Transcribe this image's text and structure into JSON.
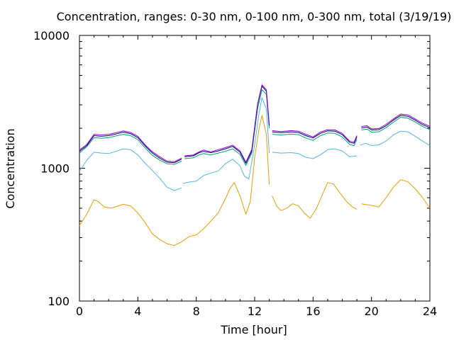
{
  "chart_data": {
    "type": "line",
    "title": "Concentration, ranges: 0-30 nm, 0-100 nm, 0-300 nm, total (3/19/19)",
    "xlabel": "Time [hour]",
    "ylabel": "Concentration",
    "xlim": [
      0,
      24
    ],
    "ylim": [
      100,
      10000
    ],
    "y_scale": "log",
    "x_ticks": [
      "0",
      "4",
      "8",
      "12",
      "16",
      "20",
      "24"
    ],
    "y_ticks": [
      "100",
      "1000",
      "10000"
    ],
    "grid": false,
    "legend": "none",
    "series": [
      {
        "color": "#e69f00",
        "segments": [
          [
            [
              0,
              370
            ],
            [
              0.5,
              450
            ],
            [
              1,
              580
            ],
            [
              1.3,
              560
            ],
            [
              1.7,
              510
            ],
            [
              2.2,
              500
            ],
            [
              3,
              535
            ],
            [
              3.5,
              520
            ],
            [
              4,
              460
            ],
            [
              4.5,
              390
            ],
            [
              5,
              320
            ],
            [
              5.5,
              290
            ],
            [
              6,
              270
            ],
            [
              6.5,
              262
            ],
            [
              7,
              280
            ],
            [
              7.5,
              305
            ],
            [
              8,
              315
            ],
            [
              8.5,
              350
            ],
            [
              9,
              400
            ],
            [
              9.5,
              460
            ],
            [
              10,
              590
            ],
            [
              10.3,
              700
            ],
            [
              10.6,
              780
            ],
            [
              11,
              620
            ],
            [
              11.4,
              450
            ],
            [
              11.7,
              560
            ],
            [
              12,
              1200
            ],
            [
              12.3,
              2000
            ],
            [
              12.5,
              2500
            ],
            [
              12.8,
              1800
            ],
            [
              13,
              750
            ]
          ],
          [
            [
              13.2,
              620
            ],
            [
              13.5,
              520
            ],
            [
              13.8,
              480
            ],
            [
              14.2,
              500
            ],
            [
              14.6,
              540
            ],
            [
              15,
              520
            ],
            [
              15.4,
              460
            ],
            [
              15.8,
              420
            ],
            [
              16.2,
              490
            ],
            [
              16.6,
              620
            ],
            [
              17,
              780
            ],
            [
              17.4,
              760
            ],
            [
              17.8,
              660
            ],
            [
              18.3,
              560
            ],
            [
              18.7,
              510
            ],
            [
              19,
              490
            ]
          ],
          [
            [
              19.3,
              540
            ],
            [
              20,
              525
            ],
            [
              20.5,
              510
            ],
            [
              21,
              600
            ],
            [
              21.5,
              720
            ],
            [
              22,
              820
            ],
            [
              22.5,
              790
            ],
            [
              23,
              700
            ],
            [
              23.5,
              600
            ],
            [
              24,
              500
            ]
          ]
        ]
      },
      {
        "color": "#56b4e9",
        "segments": [
          [
            [
              0,
              950
            ],
            [
              0.5,
              1150
            ],
            [
              1,
              1320
            ],
            [
              1.5,
              1300
            ],
            [
              2,
              1290
            ],
            [
              2.5,
              1340
            ],
            [
              3,
              1400
            ],
            [
              3.5,
              1380
            ],
            [
              4,
              1260
            ],
            [
              4.5,
              1090
            ],
            [
              5,
              960
            ],
            [
              5.5,
              840
            ],
            [
              6,
              720
            ],
            [
              6.5,
              680
            ],
            [
              7,
              710
            ]
          ],
          [
            [
              7.1,
              770
            ],
            [
              7.6,
              790
            ],
            [
              8,
              800
            ],
            [
              8.5,
              880
            ],
            [
              9,
              920
            ],
            [
              9.5,
              950
            ],
            [
              10,
              1080
            ],
            [
              10.5,
              1170
            ],
            [
              11,
              1040
            ],
            [
              11.3,
              870
            ],
            [
              11.6,
              830
            ],
            [
              12,
              1500
            ],
            [
              12.3,
              2600
            ],
            [
              12.5,
              3400
            ],
            [
              12.8,
              2800
            ],
            [
              13,
              1300
            ]
          ],
          [
            [
              13.2,
              1320
            ],
            [
              13.8,
              1300
            ],
            [
              14.5,
              1310
            ],
            [
              15,
              1290
            ],
            [
              15.5,
              1210
            ],
            [
              16,
              1180
            ],
            [
              16.5,
              1260
            ],
            [
              17,
              1380
            ],
            [
              17.5,
              1400
            ],
            [
              18,
              1350
            ],
            [
              18.5,
              1220
            ],
            [
              19,
              1240
            ]
          ],
          [
            [
              19.2,
              1490
            ],
            [
              19.6,
              1540
            ],
            [
              20,
              1480
            ],
            [
              20.5,
              1500
            ],
            [
              21,
              1600
            ],
            [
              21.5,
              1780
            ],
            [
              22,
              1900
            ],
            [
              22.5,
              1880
            ],
            [
              23,
              1740
            ],
            [
              23.5,
              1600
            ],
            [
              24,
              1480
            ]
          ]
        ]
      },
      {
        "color": "#009e73",
        "segments": [
          [
            [
              0,
              1300
            ],
            [
              0.5,
              1450
            ],
            [
              1,
              1700
            ],
            [
              1.5,
              1680
            ],
            [
              2,
              1700
            ],
            [
              2.5,
              1750
            ],
            [
              3,
              1800
            ],
            [
              3.5,
              1760
            ],
            [
              4,
              1640
            ],
            [
              4.5,
              1420
            ],
            [
              5,
              1250
            ],
            [
              5.5,
              1150
            ],
            [
              6,
              1080
            ],
            [
              6.5,
              1070
            ],
            [
              7,
              1130
            ]
          ],
          [
            [
              7.2,
              1180
            ],
            [
              7.8,
              1200
            ],
            [
              8.2,
              1260
            ],
            [
              8.5,
              1290
            ],
            [
              9,
              1260
            ],
            [
              9.5,
              1300
            ],
            [
              10,
              1340
            ],
            [
              10.5,
              1400
            ],
            [
              11,
              1270
            ],
            [
              11.4,
              1050
            ],
            [
              11.8,
              1300
            ],
            [
              12.2,
              2800
            ],
            [
              12.5,
              3900
            ],
            [
              12.8,
              3600
            ],
            [
              13,
              2000
            ]
          ],
          [
            [
              13.2,
              1800
            ],
            [
              13.8,
              1780
            ],
            [
              14.5,
              1810
            ],
            [
              15,
              1790
            ],
            [
              15.5,
              1690
            ],
            [
              16,
              1620
            ],
            [
              16.5,
              1760
            ],
            [
              17,
              1840
            ],
            [
              17.5,
              1830
            ],
            [
              18,
              1720
            ],
            [
              18.5,
              1510
            ],
            [
              18.8,
              1480
            ],
            [
              19,
              1650
            ]
          ],
          [
            [
              19.3,
              1940
            ],
            [
              19.7,
              1970
            ],
            [
              20,
              1870
            ],
            [
              20.5,
              1880
            ],
            [
              21,
              2020
            ],
            [
              21.5,
              2220
            ],
            [
              22,
              2420
            ],
            [
              22.5,
              2380
            ],
            [
              23,
              2230
            ],
            [
              23.5,
              2060
            ],
            [
              24,
              1950
            ]
          ]
        ]
      },
      {
        "color": "#000080",
        "segments": [
          [
            [
              0,
              1340
            ],
            [
              0.5,
              1480
            ],
            [
              1,
              1760
            ],
            [
              1.5,
              1740
            ],
            [
              2,
              1760
            ],
            [
              2.5,
              1810
            ],
            [
              3,
              1870
            ],
            [
              3.5,
              1820
            ],
            [
              4,
              1700
            ],
            [
              4.5,
              1470
            ],
            [
              5,
              1300
            ],
            [
              5.5,
              1190
            ],
            [
              6,
              1110
            ],
            [
              6.5,
              1100
            ],
            [
              7,
              1170
            ]
          ],
          [
            [
              7.2,
              1220
            ],
            [
              7.8,
              1240
            ],
            [
              8.2,
              1310
            ],
            [
              8.5,
              1340
            ],
            [
              9,
              1310
            ],
            [
              9.5,
              1350
            ],
            [
              10,
              1400
            ],
            [
              10.5,
              1460
            ],
            [
              11,
              1320
            ],
            [
              11.4,
              1090
            ],
            [
              11.8,
              1350
            ],
            [
              12.2,
              3000
            ],
            [
              12.5,
              4150
            ],
            [
              12.8,
              3800
            ],
            [
              13,
              2100
            ]
          ],
          [
            [
              13.2,
              1880
            ],
            [
              13.8,
              1850
            ],
            [
              14.5,
              1880
            ],
            [
              15,
              1860
            ],
            [
              15.5,
              1760
            ],
            [
              16,
              1690
            ],
            [
              16.5,
              1830
            ],
            [
              17,
              1910
            ],
            [
              17.5,
              1900
            ],
            [
              18,
              1790
            ],
            [
              18.5,
              1570
            ],
            [
              18.8,
              1540
            ],
            [
              19,
              1720
            ]
          ],
          [
            [
              19.3,
              2010
            ],
            [
              19.7,
              2040
            ],
            [
              20,
              1940
            ],
            [
              20.5,
              1950
            ],
            [
              21,
              2090
            ],
            [
              21.5,
              2300
            ],
            [
              22,
              2500
            ],
            [
              22.5,
              2460
            ],
            [
              23,
              2300
            ],
            [
              23.5,
              2130
            ],
            [
              24,
              2020
            ]
          ]
        ]
      },
      {
        "color": "#9400d3",
        "segments": [
          [
            [
              0,
              1370
            ],
            [
              0.5,
              1510
            ],
            [
              1,
              1800
            ],
            [
              1.5,
              1780
            ],
            [
              2,
              1800
            ],
            [
              2.5,
              1850
            ],
            [
              3,
              1910
            ],
            [
              3.5,
              1860
            ],
            [
              4,
              1740
            ],
            [
              4.5,
              1500
            ],
            [
              5,
              1330
            ],
            [
              5.5,
              1220
            ],
            [
              6,
              1130
            ],
            [
              6.5,
              1120
            ],
            [
              7,
              1190
            ]
          ],
          [
            [
              7.2,
              1240
            ],
            [
              7.8,
              1260
            ],
            [
              8.2,
              1330
            ],
            [
              8.5,
              1370
            ],
            [
              9,
              1330
            ],
            [
              9.5,
              1380
            ],
            [
              10,
              1430
            ],
            [
              10.5,
              1490
            ],
            [
              11,
              1350
            ],
            [
              11.4,
              1110
            ],
            [
              11.8,
              1380
            ],
            [
              12.2,
              3050
            ],
            [
              12.5,
              4250
            ],
            [
              12.8,
              3900
            ],
            [
              13,
              2150
            ]
          ],
          [
            [
              13.2,
              1920
            ],
            [
              13.8,
              1890
            ],
            [
              14.5,
              1920
            ],
            [
              15,
              1900
            ],
            [
              15.5,
              1800
            ],
            [
              16,
              1720
            ],
            [
              16.5,
              1870
            ],
            [
              17,
              1950
            ],
            [
              17.5,
              1940
            ],
            [
              18,
              1830
            ],
            [
              18.5,
              1600
            ],
            [
              18.8,
              1570
            ],
            [
              19,
              1760
            ]
          ],
          [
            [
              19.3,
              2060
            ],
            [
              19.7,
              2090
            ],
            [
              20,
              1980
            ],
            [
              20.5,
              1990
            ],
            [
              21,
              2140
            ],
            [
              21.5,
              2350
            ],
            [
              22,
              2560
            ],
            [
              22.5,
              2520
            ],
            [
              23,
              2350
            ],
            [
              23.5,
              2180
            ],
            [
              24,
              2070
            ]
          ]
        ]
      }
    ]
  }
}
